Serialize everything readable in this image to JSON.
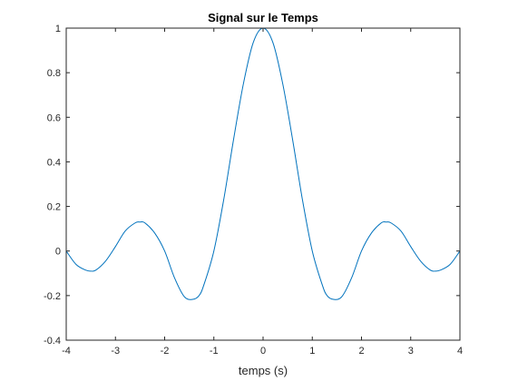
{
  "chart_data": {
    "type": "line",
    "title": "Signal sur le Temps",
    "xlabel": "temps (s)",
    "ylabel": "",
    "xlim": [
      -4,
      4
    ],
    "ylim": [
      -0.4,
      1
    ],
    "xticks": [
      -4,
      -3,
      -2,
      -1,
      0,
      1,
      2,
      3,
      4
    ],
    "xtick_labels": [
      "-4",
      "-3",
      "-2",
      "-1",
      "0",
      "1",
      "2",
      "3",
      "4"
    ],
    "yticks": [
      -0.4,
      -0.2,
      0,
      0.2,
      0.4,
      0.6,
      0.8,
      1
    ],
    "ytick_labels": [
      "-0.4",
      "-0.2",
      "0",
      "0.2",
      "0.4",
      "0.6",
      "0.8",
      "1"
    ],
    "grid": false,
    "box": true,
    "series": [
      {
        "color": "#0072BD",
        "x": [
          -4,
          -3.8,
          -3.6,
          -3.5,
          -3.4,
          -3.2,
          -3,
          -2.8,
          -2.6,
          -2.5,
          -2.4,
          -2.2,
          -2,
          -1.8,
          -1.6,
          -1.43,
          -1.3,
          -1.2,
          -1,
          -0.8,
          -0.6,
          -0.4,
          -0.2,
          0,
          0.2,
          0.4,
          0.6,
          0.8,
          1,
          1.2,
          1.3,
          1.43,
          1.6,
          1.8,
          2,
          2.2,
          2.4,
          2.5,
          2.6,
          2.8,
          3,
          3.2,
          3.4,
          3.5,
          3.6,
          3.8,
          4
        ],
        "y": [
          0,
          -0.06,
          -0.086,
          -0.09,
          -0.086,
          -0.045,
          0.02,
          0.09,
          0.126,
          0.13,
          0.126,
          0.08,
          0,
          -0.12,
          -0.205,
          -0.217,
          -0.2,
          -0.15,
          0,
          0.23,
          0.5,
          0.75,
          0.935,
          1,
          0.935,
          0.75,
          0.5,
          0.23,
          0,
          -0.15,
          -0.2,
          -0.217,
          -0.205,
          -0.12,
          0,
          0.08,
          0.126,
          0.13,
          0.126,
          0.09,
          0.02,
          -0.045,
          -0.086,
          -0.09,
          -0.086,
          -0.06,
          0
        ]
      }
    ]
  }
}
